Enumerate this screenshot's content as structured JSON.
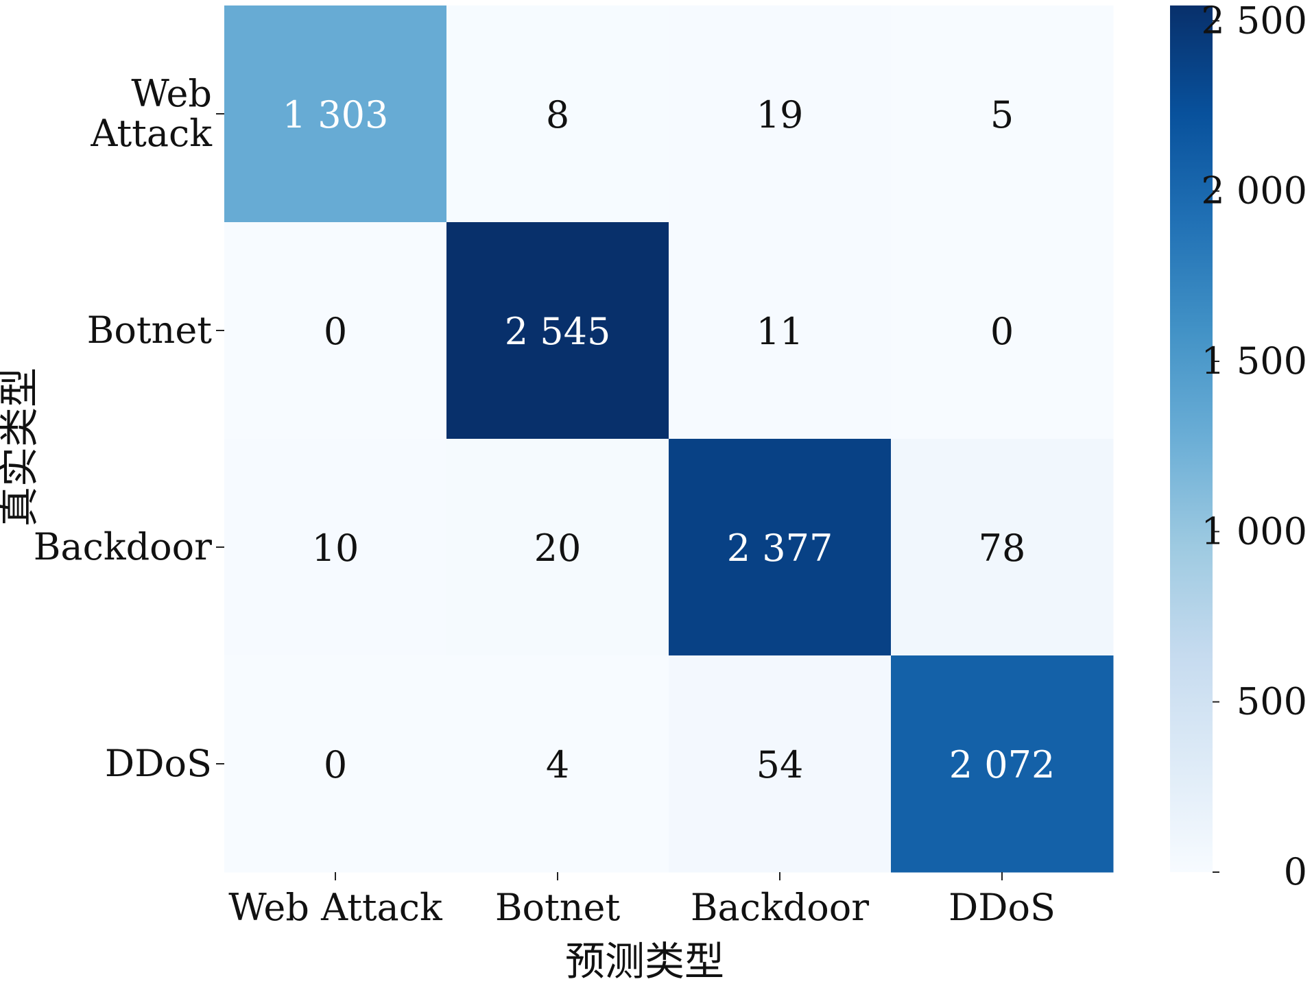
{
  "chart_data": {
    "type": "heatmap",
    "title": "",
    "xlabel": "预测类型",
    "ylabel": "真实类型",
    "x_categories": [
      "Web Attack",
      "Botnet",
      "Backdoor",
      "DDoS"
    ],
    "y_categories": [
      [
        "Web",
        "Attack"
      ],
      [
        "Botnet"
      ],
      [
        "Backdoor"
      ],
      [
        "DDoS"
      ]
    ],
    "values": [
      [
        1303,
        8,
        19,
        5
      ],
      [
        0,
        2545,
        11,
        0
      ],
      [
        10,
        20,
        2377,
        78
      ],
      [
        0,
        4,
        54,
        2072
      ]
    ],
    "value_labels": [
      [
        "1 303",
        "8",
        "19",
        "5"
      ],
      [
        "0",
        "2 545",
        "11",
        "0"
      ],
      [
        "10",
        "20",
        "2 377",
        "78"
      ],
      [
        "0",
        "4",
        "54",
        "2 072"
      ]
    ],
    "vmin": 0,
    "vmax": 2545,
    "colorbar": {
      "ticks": [
        0,
        500,
        1000,
        1500,
        2000,
        2500
      ],
      "tick_labels": [
        "0",
        "500",
        "1 000",
        "1 500",
        "2 000",
        "2 500"
      ]
    },
    "colormap": "Blues",
    "colormap_stops": [
      "#f7fbff",
      "#deebf7",
      "#c6dbef",
      "#9ecae1",
      "#6baed6",
      "#4292c6",
      "#2171b5",
      "#08519c",
      "#08306b"
    ]
  }
}
